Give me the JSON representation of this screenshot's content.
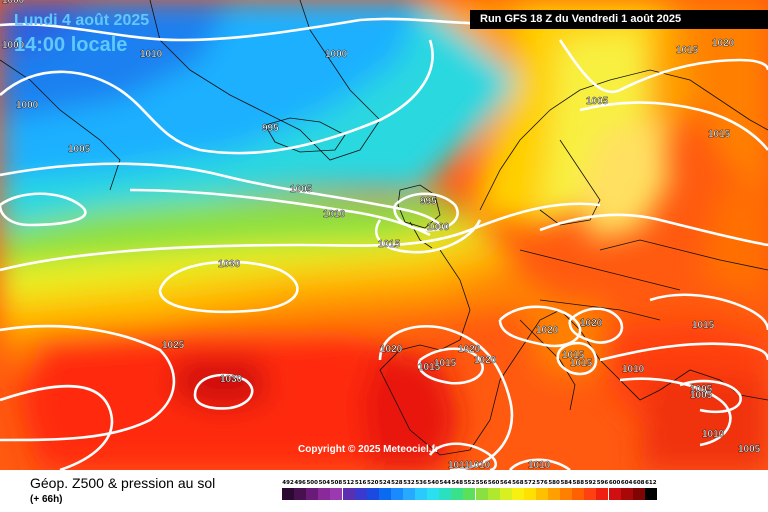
{
  "header": {
    "date": "Lundi 4 août 2025",
    "time": "14:00 locale",
    "run": "Run GFS 18 Z du Vendredi 1 août 2025"
  },
  "copyright": "Copyright © 2025 Meteociel.fr",
  "footer": {
    "title": "Géop. Z500 & pression au sol",
    "subtitle": "(+ 66h)"
  },
  "isobar_labels": [
    {
      "text": "1000"
    },
    {
      "text": "1010"
    },
    {
      "text": "1000"
    },
    {
      "text": "1000"
    },
    {
      "text": "1005"
    },
    {
      "text": "995"
    },
    {
      "text": "1000"
    },
    {
      "text": "1005"
    },
    {
      "text": "1010"
    },
    {
      "text": "995"
    },
    {
      "text": "1000"
    },
    {
      "text": "1015"
    },
    {
      "text": "1030"
    },
    {
      "text": "1025"
    },
    {
      "text": "1030"
    },
    {
      "text": "1020"
    },
    {
      "text": "1020"
    },
    {
      "text": "1015"
    },
    {
      "text": "1015"
    },
    {
      "text": "1020"
    },
    {
      "text": "1020"
    },
    {
      "text": "1020"
    },
    {
      "text": "1020"
    },
    {
      "text": "1015"
    },
    {
      "text": "1015"
    },
    {
      "text": "1015"
    },
    {
      "text": "1010"
    },
    {
      "text": "1005"
    },
    {
      "text": "1005"
    },
    {
      "text": "1010"
    },
    {
      "text": "1005"
    },
    {
      "text": "1015"
    },
    {
      "text": "1020"
    },
    {
      "text": "1015"
    },
    {
      "text": "1005"
    },
    {
      "text": "1011"
    },
    {
      "text": "1010"
    },
    {
      "text": "1010"
    }
  ],
  "legend": {
    "values": [
      "492",
      "496",
      "500",
      "504",
      "508",
      "512",
      "516",
      "520",
      "524",
      "528",
      "532",
      "536",
      "540",
      "544",
      "548",
      "552",
      "556",
      "560",
      "564",
      "568",
      "572",
      "576",
      "580",
      "584",
      "588",
      "592",
      "596",
      "600",
      "604",
      "608",
      "612"
    ],
    "colors": [
      "#2a0a30",
      "#47104f",
      "#6a1a78",
      "#8a2a9a",
      "#9a3ab0",
      "#5a2fb0",
      "#3a3ad0",
      "#1a4ae0",
      "#0a6af0",
      "#1a8aff",
      "#26aaff",
      "#2acaff",
      "#2ae0f0",
      "#2ae0c0",
      "#3ae08a",
      "#5ae05a",
      "#8ae040",
      "#b0e830",
      "#d8f020",
      "#f8f010",
      "#ffe000",
      "#ffc000",
      "#ffa000",
      "#ff8000",
      "#ff6000",
      "#ff4010",
      "#f02010",
      "#d01010",
      "#a80808",
      "#800404",
      "#000000"
    ]
  },
  "colors": {
    "title": "#5ec8ff",
    "isobar": "#ffffff",
    "border": "#000000"
  }
}
